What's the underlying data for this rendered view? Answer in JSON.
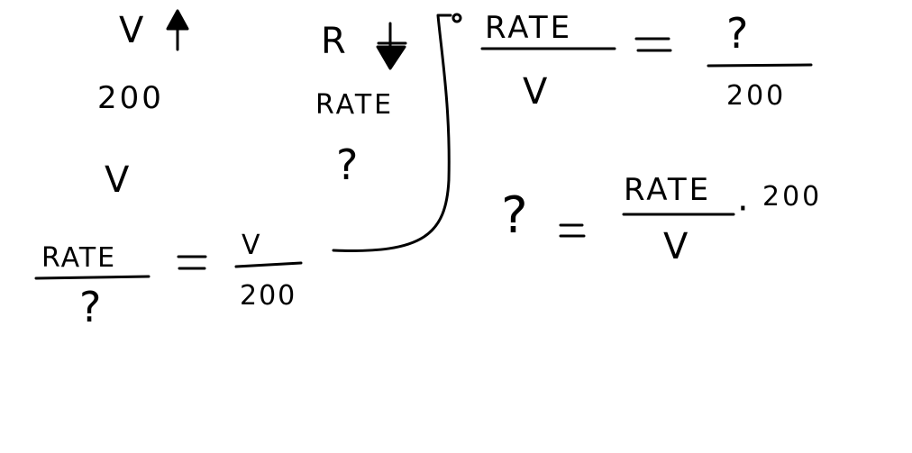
{
  "left": {
    "v_up_label": "V",
    "value_200": "200",
    "v_label": "V",
    "eq1": {
      "num_left": "RATE",
      "den_left": "?",
      "equals": "=",
      "num_right": "V",
      "den_right": "200"
    }
  },
  "middle": {
    "r_down_label": "R",
    "rate_label": "RATE",
    "question": "?"
  },
  "right": {
    "eq2": {
      "num_left": "RATE",
      "den_left": "V",
      "equals": "=",
      "num_right": "?",
      "den_right": "200"
    },
    "eq3": {
      "left": "?",
      "equals": "=",
      "num": "RATE",
      "den": "V",
      "times": "·",
      "factor": "200"
    }
  },
  "ink_color": "#000000",
  "background_color": "#ffffff"
}
